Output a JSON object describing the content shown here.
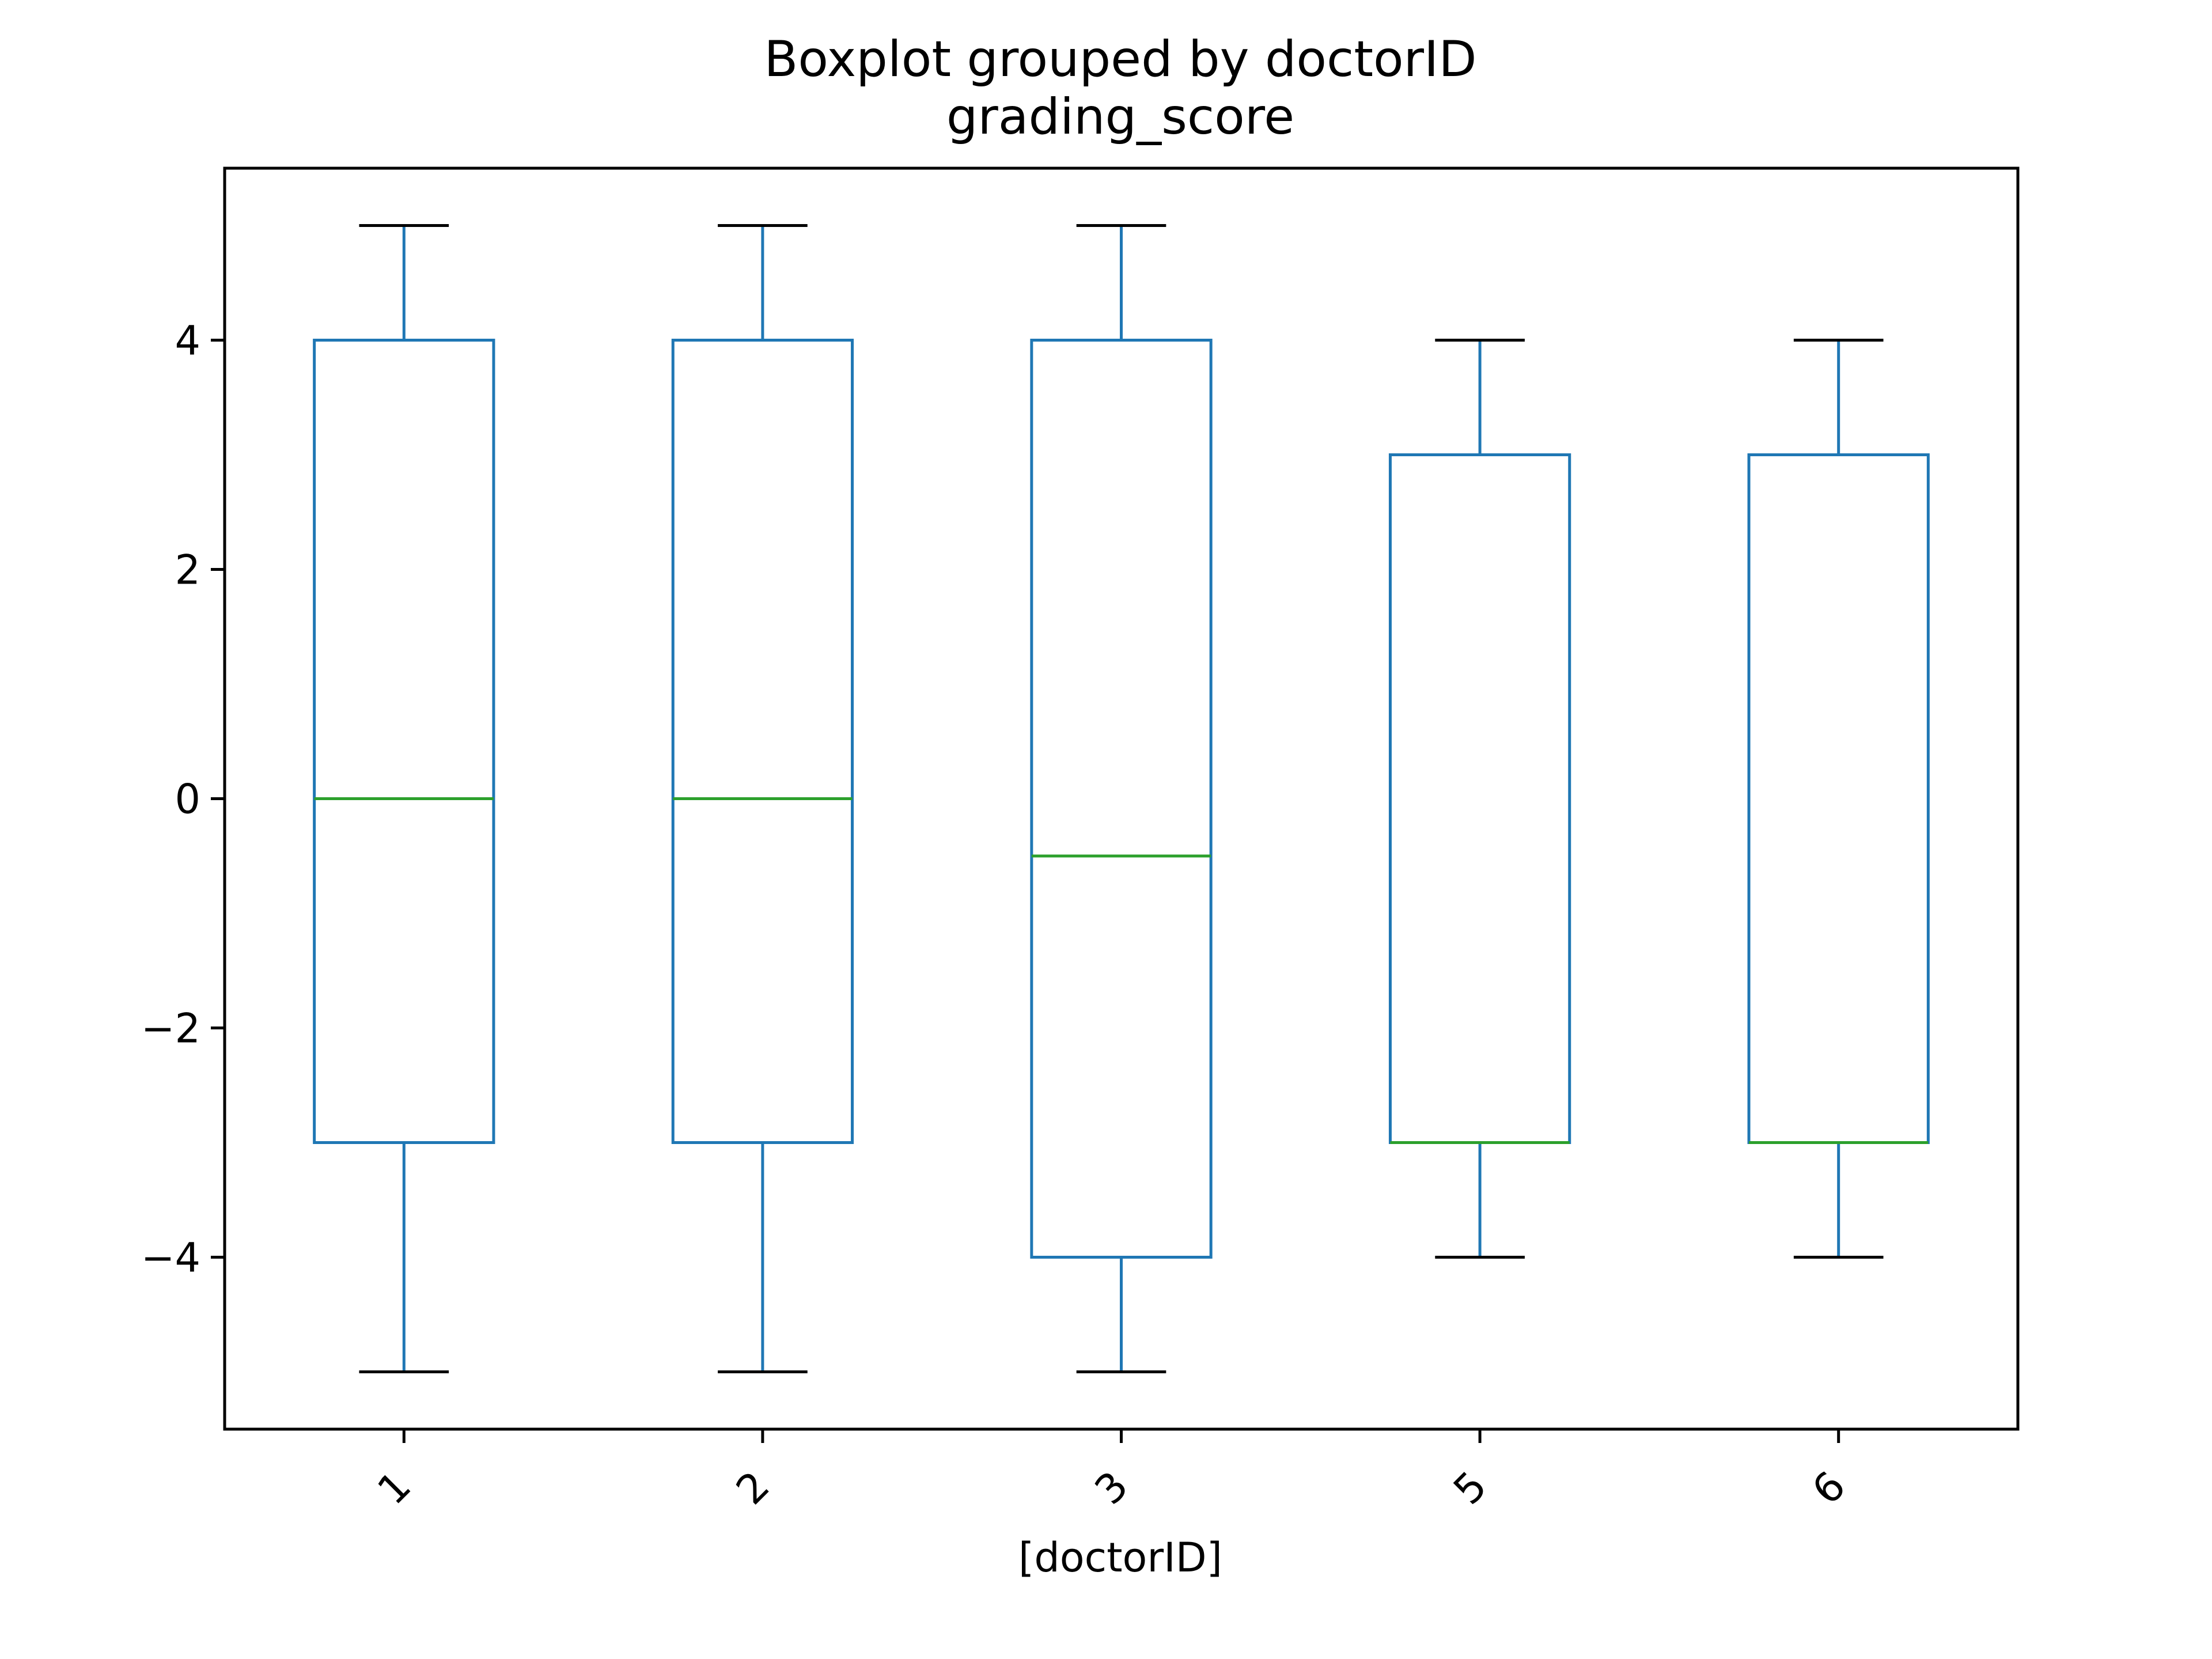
{
  "chart_data": {
    "type": "box",
    "title": "Boxplot grouped by doctorID",
    "subtitle": "grading_score",
    "xlabel": "[doctorID]",
    "ylabel": "",
    "categories": [
      "1",
      "2",
      "3",
      "5",
      "6"
    ],
    "ylim": [
      -5.5,
      5.5
    ],
    "yticks": [
      -4,
      -2,
      0,
      2,
      4
    ],
    "ytick_labels": [
      "−4",
      "−2",
      "0",
      "2",
      "4"
    ],
    "xtick_rotation_deg": 45,
    "grid": false,
    "legend": "none",
    "colors": {
      "box": "#1f77b4",
      "median": "#2ca02c",
      "whisker": "#1f77b4",
      "cap": "#000000",
      "axes": "#000000"
    },
    "boxes": [
      {
        "category": "1",
        "min": -5,
        "q1": -3,
        "median": 0,
        "q3": 4,
        "max": 5
      },
      {
        "category": "2",
        "min": -5,
        "q1": -3,
        "median": 0,
        "q3": 4,
        "max": 5
      },
      {
        "category": "3",
        "min": -5,
        "q1": -4,
        "median": -0.5,
        "q3": 4,
        "max": 5
      },
      {
        "category": "5",
        "min": -4,
        "q1": -3,
        "median": -3,
        "q3": 3,
        "max": 4
      },
      {
        "category": "6",
        "min": -4,
        "q1": -3,
        "median": -3,
        "q3": 3,
        "max": 4
      }
    ]
  }
}
